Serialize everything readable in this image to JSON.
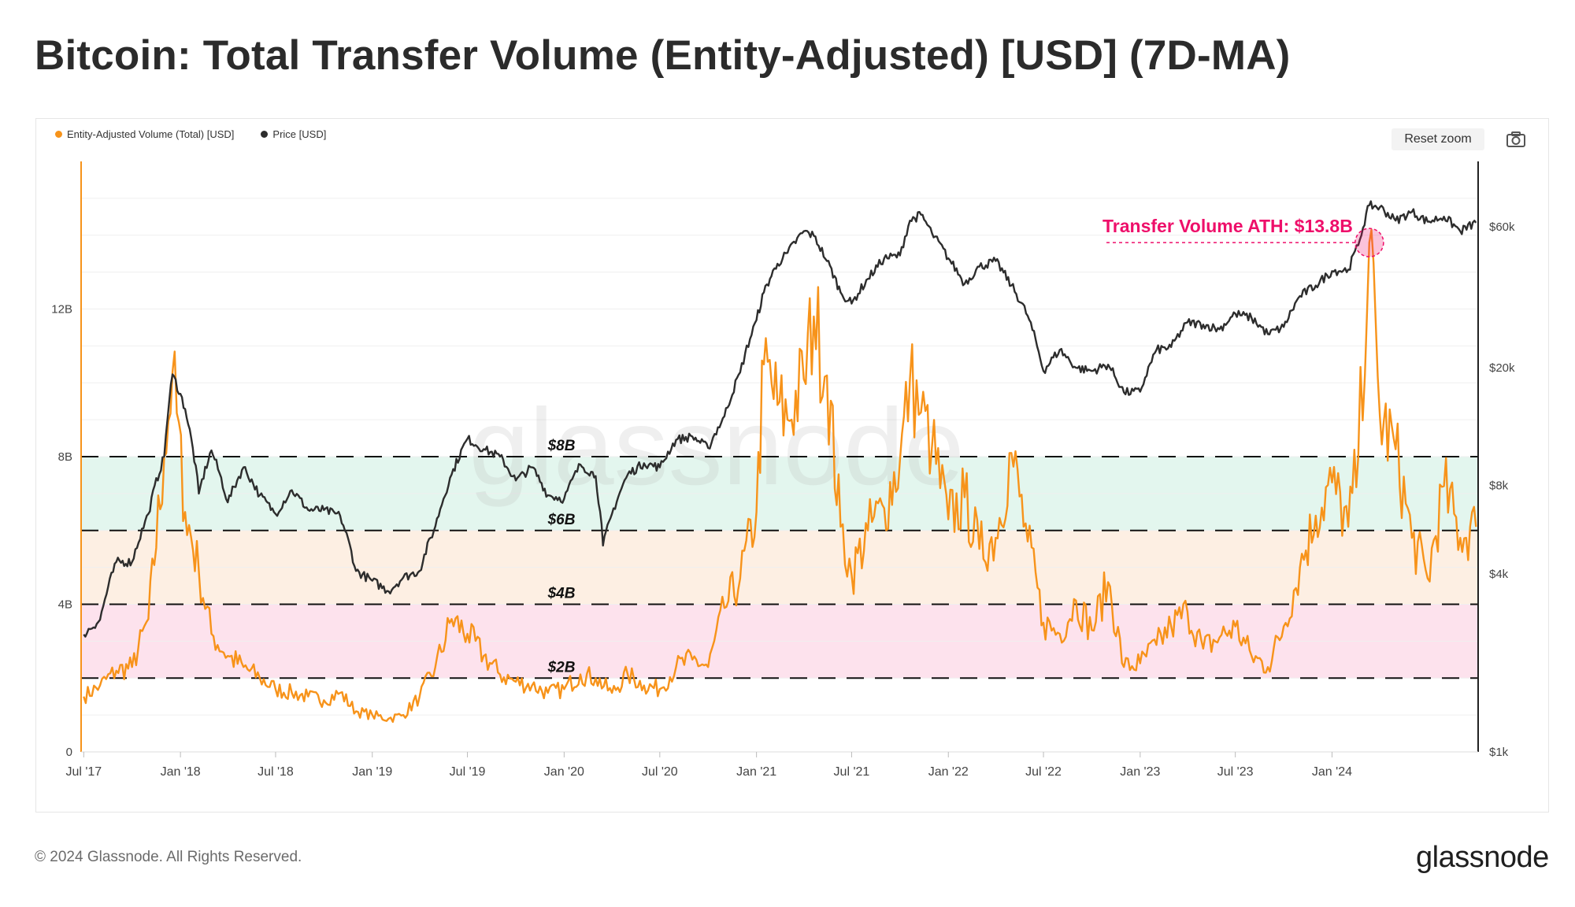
{
  "title": "Bitcoin: Total Transfer Volume (Entity-Adjusted) [USD] (7D-MA)",
  "toolbar": {
    "reset_zoom": "Reset zoom",
    "camera_icon": "camera-icon"
  },
  "footer": {
    "copyright": "© 2024 Glassnode. All Rights Reserved.",
    "logo": "glassnode"
  },
  "watermark": "glassnode",
  "colors": {
    "volume": "#f7931a",
    "price": "#2d2d2d",
    "band_green": "#e3f6ee",
    "band_orange": "#fdefe3",
    "band_pink": "#fde2ed",
    "annotation": "#ee0f6a"
  },
  "chart_data": {
    "type": "line",
    "title": "Bitcoin: Total Transfer Volume (Entity-Adjusted) [USD] (7D-MA)",
    "x_ticks": [
      "Jul '17",
      "Jan '18",
      "Jul '18",
      "Jan '19",
      "Jul '19",
      "Jan '20",
      "Jul '20",
      "Jan '21",
      "Jul '21",
      "Jan '22",
      "Jul '22",
      "Jan '23",
      "Jul '23",
      "Jan '24"
    ],
    "x_range": [
      "2017-06-26",
      "2024-10-05"
    ],
    "y_left": {
      "ticks": [
        "0",
        "4B",
        "8B",
        "12B"
      ],
      "range": [
        0,
        16
      ]
    },
    "y_right": {
      "ticks": [
        "$1k",
        "$4k",
        "$8k",
        "$20k",
        "$60k"
      ],
      "scale": "log",
      "range": [
        1000,
        100000
      ]
    },
    "legend": {
      "position": "top-left"
    },
    "bands": [
      {
        "from": 6,
        "to": 8,
        "color": "#e3f6ee"
      },
      {
        "from": 4,
        "to": 6,
        "color": "#fdefe3"
      },
      {
        "from": 2,
        "to": 4,
        "color": "#fde2ed"
      }
    ],
    "threshold_lines": [
      {
        "value": 8,
        "label": "$8B"
      },
      {
        "value": 6,
        "label": "$6B"
      },
      {
        "value": 4,
        "label": "$4B"
      },
      {
        "value": 2,
        "label": "$2B"
      }
    ],
    "annotation": {
      "text": "Transfer Volume ATH: $13.8B",
      "date": "2024-03-12",
      "value": 13.8
    },
    "series": [
      {
        "name": "Entity-Adjusted Volume (Total) [USD]",
        "axis": "left",
        "unit": "B",
        "points": [
          [
            "2017-07-01",
            1.5
          ],
          [
            "2017-08-01",
            1.8
          ],
          [
            "2017-09-01",
            2.2
          ],
          [
            "2017-10-01",
            2.3
          ],
          [
            "2017-11-01",
            3.6
          ],
          [
            "2017-12-01",
            8.0
          ],
          [
            "2017-12-17",
            10.3
          ],
          [
            "2018-01-10",
            6.5
          ],
          [
            "2018-02-05",
            4.9
          ],
          [
            "2018-03-01",
            3.2
          ],
          [
            "2018-04-01",
            2.6
          ],
          [
            "2018-05-01",
            2.3
          ],
          [
            "2018-06-01",
            2.0
          ],
          [
            "2018-07-01",
            1.7
          ],
          [
            "2018-08-01",
            1.6
          ],
          [
            "2018-09-01",
            1.5
          ],
          [
            "2018-10-01",
            1.4
          ],
          [
            "2018-11-01",
            1.6
          ],
          [
            "2018-12-01",
            1.1
          ],
          [
            "2019-01-01",
            1.0
          ],
          [
            "2019-02-01",
            0.9
          ],
          [
            "2019-03-01",
            1.0
          ],
          [
            "2019-04-01",
            1.5
          ],
          [
            "2019-05-01",
            2.3
          ],
          [
            "2019-06-01",
            3.6
          ],
          [
            "2019-07-01",
            3.2
          ],
          [
            "2019-08-01",
            2.6
          ],
          [
            "2019-09-01",
            2.1
          ],
          [
            "2019-10-01",
            1.9
          ],
          [
            "2019-11-01",
            1.8
          ],
          [
            "2019-12-01",
            1.6
          ],
          [
            "2020-01-01",
            1.7
          ],
          [
            "2020-02-01",
            2.1
          ],
          [
            "2020-03-01",
            2.0
          ],
          [
            "2020-04-01",
            1.6
          ],
          [
            "2020-05-01",
            2.1
          ],
          [
            "2020-06-01",
            1.8
          ],
          [
            "2020-07-01",
            1.7
          ],
          [
            "2020-08-01",
            2.3
          ],
          [
            "2020-09-01",
            2.5
          ],
          [
            "2020-10-01",
            2.3
          ],
          [
            "2020-11-01",
            3.9
          ],
          [
            "2020-12-01",
            4.7
          ],
          [
            "2021-01-01",
            6.5
          ],
          [
            "2021-01-15",
            10.5
          ],
          [
            "2021-02-10",
            9.4
          ],
          [
            "2021-03-01",
            9.0
          ],
          [
            "2021-04-01",
            10.1
          ],
          [
            "2021-04-20",
            11.8
          ],
          [
            "2021-05-15",
            10.2
          ],
          [
            "2021-06-10",
            6.1
          ],
          [
            "2021-07-01",
            4.8
          ],
          [
            "2021-08-01",
            6.0
          ],
          [
            "2021-09-01",
            6.6
          ],
          [
            "2021-10-01",
            7.9
          ],
          [
            "2021-10-20",
            10.1
          ],
          [
            "2021-11-10",
            9.2
          ],
          [
            "2021-12-01",
            8.3
          ],
          [
            "2022-01-01",
            6.3
          ],
          [
            "2022-02-01",
            6.9
          ],
          [
            "2022-03-01",
            5.5
          ],
          [
            "2022-04-01",
            5.8
          ],
          [
            "2022-05-01",
            8.1
          ],
          [
            "2022-06-01",
            5.7
          ],
          [
            "2022-07-01",
            3.5
          ],
          [
            "2022-08-01",
            3.2
          ],
          [
            "2022-09-01",
            4.1
          ],
          [
            "2022-10-01",
            3.3
          ],
          [
            "2022-11-01",
            4.6
          ],
          [
            "2022-12-01",
            2.3
          ],
          [
            "2023-01-01",
            2.4
          ],
          [
            "2023-02-01",
            2.9
          ],
          [
            "2023-03-01",
            3.4
          ],
          [
            "2023-04-01",
            3.8
          ],
          [
            "2023-05-01",
            2.8
          ],
          [
            "2023-06-01",
            3.1
          ],
          [
            "2023-07-01",
            3.4
          ],
          [
            "2023-08-01",
            2.6
          ],
          [
            "2023-09-01",
            2.3
          ],
          [
            "2023-10-01",
            3.4
          ],
          [
            "2023-11-01",
            5.0
          ],
          [
            "2023-12-01",
            6.4
          ],
          [
            "2024-01-01",
            7.3
          ],
          [
            "2024-02-01",
            6.1
          ],
          [
            "2024-02-20",
            8.0
          ],
          [
            "2024-03-12",
            13.8
          ],
          [
            "2024-04-01",
            9.1
          ],
          [
            "2024-05-01",
            8.2
          ],
          [
            "2024-06-01",
            5.8
          ],
          [
            "2024-07-01",
            4.7
          ],
          [
            "2024-08-01",
            7.2
          ],
          [
            "2024-09-01",
            5.8
          ],
          [
            "2024-10-01",
            6.1
          ]
        ]
      },
      {
        "name": "Price [USD]",
        "axis": "right",
        "unit": "$",
        "points": [
          [
            "2017-07-01",
            2500
          ],
          [
            "2017-08-01",
            2800
          ],
          [
            "2017-09-01",
            4400
          ],
          [
            "2017-10-01",
            4400
          ],
          [
            "2017-11-01",
            6400
          ],
          [
            "2017-12-01",
            10000
          ],
          [
            "2017-12-17",
            19000
          ],
          [
            "2018-01-10",
            14500
          ],
          [
            "2018-02-05",
            7500
          ],
          [
            "2018-03-01",
            10500
          ],
          [
            "2018-04-01",
            7000
          ],
          [
            "2018-05-01",
            9200
          ],
          [
            "2018-06-01",
            7400
          ],
          [
            "2018-07-01",
            6400
          ],
          [
            "2018-08-01",
            7700
          ],
          [
            "2018-09-01",
            6600
          ],
          [
            "2018-10-01",
            6600
          ],
          [
            "2018-11-01",
            6300
          ],
          [
            "2018-12-01",
            4100
          ],
          [
            "2019-01-01",
            3800
          ],
          [
            "2019-02-01",
            3500
          ],
          [
            "2019-03-01",
            3900
          ],
          [
            "2019-04-01",
            4100
          ],
          [
            "2019-05-01",
            5800
          ],
          [
            "2019-06-01",
            8700
          ],
          [
            "2019-07-01",
            11500
          ],
          [
            "2019-08-01",
            10600
          ],
          [
            "2019-09-01",
            10000
          ],
          [
            "2019-10-01",
            8300
          ],
          [
            "2019-11-01",
            9200
          ],
          [
            "2019-12-01",
            7400
          ],
          [
            "2020-01-01",
            7200
          ],
          [
            "2020-02-01",
            9400
          ],
          [
            "2020-03-01",
            8600
          ],
          [
            "2020-03-15",
            5000
          ],
          [
            "2020-04-01",
            6400
          ],
          [
            "2020-05-01",
            8700
          ],
          [
            "2020-06-01",
            9500
          ],
          [
            "2020-07-01",
            9200
          ],
          [
            "2020-08-01",
            11400
          ],
          [
            "2020-09-01",
            11700
          ],
          [
            "2020-10-01",
            10700
          ],
          [
            "2020-11-01",
            13700
          ],
          [
            "2020-12-01",
            19300
          ],
          [
            "2021-01-01",
            29000
          ],
          [
            "2021-01-15",
            36000
          ],
          [
            "2021-02-10",
            45000
          ],
          [
            "2021-03-01",
            49000
          ],
          [
            "2021-04-01",
            58000
          ],
          [
            "2021-04-20",
            56000
          ],
          [
            "2021-05-15",
            46000
          ],
          [
            "2021-06-10",
            36000
          ],
          [
            "2021-07-01",
            33000
          ],
          [
            "2021-08-01",
            40000
          ],
          [
            "2021-09-01",
            47000
          ],
          [
            "2021-10-01",
            48000
          ],
          [
            "2021-10-20",
            63000
          ],
          [
            "2021-11-10",
            66000
          ],
          [
            "2021-12-01",
            57000
          ],
          [
            "2022-01-01",
            47000
          ],
          [
            "2022-02-01",
            38500
          ],
          [
            "2022-03-01",
            44000
          ],
          [
            "2022-04-01",
            46000
          ],
          [
            "2022-05-01",
            38000
          ],
          [
            "2022-06-01",
            30000
          ],
          [
            "2022-07-01",
            19500
          ],
          [
            "2022-08-01",
            23000
          ],
          [
            "2022-09-01",
            20000
          ],
          [
            "2022-10-01",
            19500
          ],
          [
            "2022-11-01",
            20500
          ],
          [
            "2022-12-01",
            16500
          ],
          [
            "2023-01-01",
            16600
          ],
          [
            "2023-02-01",
            23000
          ],
          [
            "2023-03-01",
            23500
          ],
          [
            "2023-04-01",
            28500
          ],
          [
            "2023-05-01",
            28000
          ],
          [
            "2023-06-01",
            27000
          ],
          [
            "2023-07-01",
            30500
          ],
          [
            "2023-08-01",
            29500
          ],
          [
            "2023-09-01",
            26000
          ],
          [
            "2023-10-01",
            27500
          ],
          [
            "2023-11-01",
            35000
          ],
          [
            "2023-12-01",
            38000
          ],
          [
            "2024-01-01",
            42500
          ],
          [
            "2024-02-01",
            43000
          ],
          [
            "2024-02-20",
            52000
          ],
          [
            "2024-03-12",
            71000
          ],
          [
            "2024-04-01",
            70000
          ],
          [
            "2024-05-01",
            63000
          ],
          [
            "2024-06-01",
            67500
          ],
          [
            "2024-07-01",
            62500
          ],
          [
            "2024-08-01",
            65000
          ],
          [
            "2024-09-01",
            58000
          ],
          [
            "2024-10-01",
            62000
          ]
        ]
      }
    ]
  }
}
